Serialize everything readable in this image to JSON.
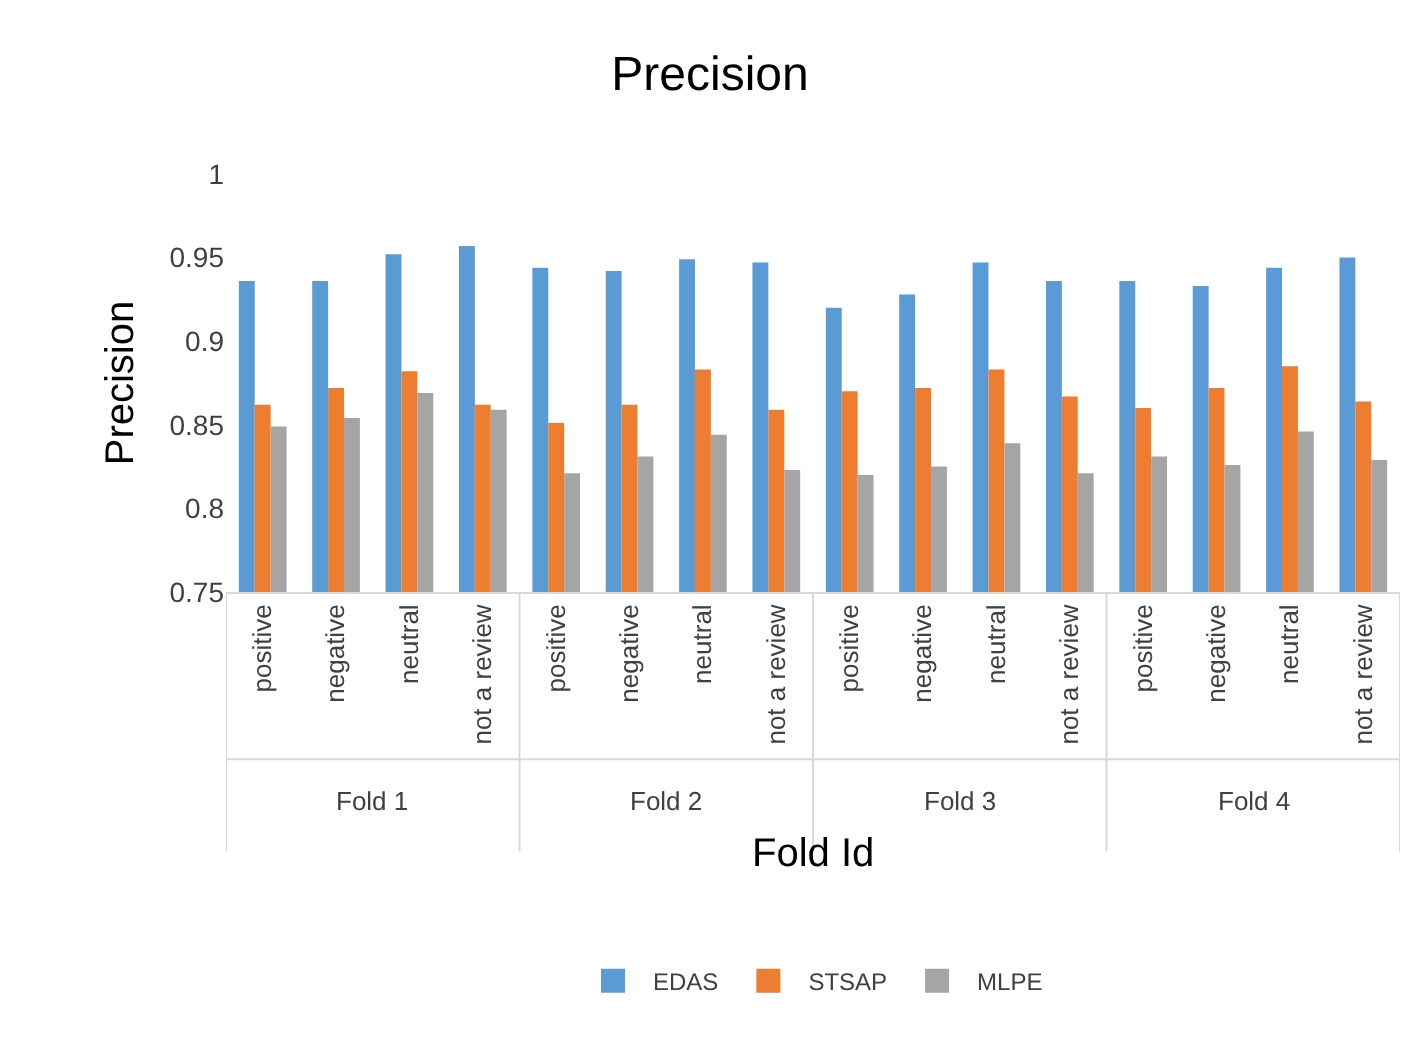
{
  "chart_data": {
    "type": "bar",
    "title": "Precision",
    "xlabel": "Fold Id",
    "ylabel": "Precision",
    "categories": [
      "positive",
      "negative",
      "neutral",
      "not a review",
      "positive",
      "negative",
      "neutral",
      "not a review",
      "positive",
      "negative",
      "neutral",
      "not a review",
      "positive",
      "negative",
      "neutral",
      "not a review"
    ],
    "annotations": [
      "Fold 1",
      "Fold 2",
      "Fold 3",
      "Fold 4"
    ],
    "series": [
      {
        "name": "EDAS",
        "color": "#5b9bd5",
        "values": [
          0.936,
          0.936,
          0.952,
          0.957,
          0.944,
          0.942,
          0.949,
          0.947,
          0.92,
          0.928,
          0.947,
          0.936,
          0.936,
          0.933,
          0.944,
          0.95
        ]
      },
      {
        "name": "STSAP",
        "color": "#ed7d31",
        "values": [
          0.862,
          0.872,
          0.882,
          0.862,
          0.851,
          0.862,
          0.883,
          0.859,
          0.87,
          0.872,
          0.883,
          0.867,
          0.86,
          0.872,
          0.885,
          0.864
        ]
      },
      {
        "name": "MLPE",
        "color": "#a5a5a5",
        "values": [
          0.849,
          0.854,
          0.869,
          0.859,
          0.821,
          0.831,
          0.844,
          0.823,
          0.82,
          0.825,
          0.839,
          0.821,
          0.831,
          0.826,
          0.846,
          0.829
        ]
      }
    ],
    "ylim": [
      0.75,
      1
    ],
    "yticks": [
      0.75,
      0.8,
      0.85,
      0.9,
      0.95,
      1
    ],
    "legend": "bottom"
  }
}
